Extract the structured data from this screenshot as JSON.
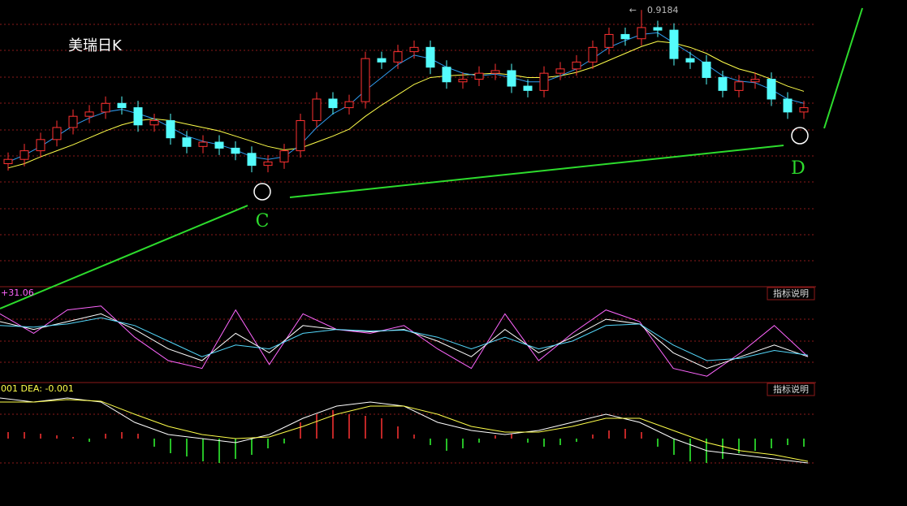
{
  "chart_data": [
    {
      "type": "candlestick",
      "title": "美瑞日K",
      "open": [
        0.74,
        0.745,
        0.755,
        0.768,
        0.782,
        0.795,
        0.8,
        0.81,
        0.805,
        0.785,
        0.79,
        0.77,
        0.76,
        0.765,
        0.758,
        0.752,
        0.738,
        0.742,
        0.755,
        0.79,
        0.815,
        0.805,
        0.812,
        0.862,
        0.858,
        0.87,
        0.875,
        0.852,
        0.835,
        0.838,
        0.845,
        0.848,
        0.83,
        0.825,
        0.845,
        0.85,
        0.858,
        0.875,
        0.89,
        0.885,
        0.898,
        0.895,
        0.862,
        0.858,
        0.84,
        0.825,
        0.835,
        0.838,
        0.815,
        0.8
      ],
      "high": [
        0.753,
        0.763,
        0.776,
        0.79,
        0.803,
        0.808,
        0.818,
        0.818,
        0.813,
        0.798,
        0.798,
        0.778,
        0.773,
        0.773,
        0.766,
        0.76,
        0.75,
        0.763,
        0.798,
        0.823,
        0.823,
        0.82,
        0.87,
        0.87,
        0.878,
        0.883,
        0.883,
        0.86,
        0.846,
        0.853,
        0.856,
        0.856,
        0.838,
        0.853,
        0.858,
        0.866,
        0.883,
        0.898,
        0.898,
        0.9184,
        0.906,
        0.903,
        0.87,
        0.866,
        0.848,
        0.843,
        0.846,
        0.846,
        0.823,
        0.813
      ],
      "low": [
        0.732,
        0.737,
        0.747,
        0.76,
        0.774,
        0.787,
        0.792,
        0.797,
        0.777,
        0.777,
        0.762,
        0.752,
        0.752,
        0.75,
        0.744,
        0.73,
        0.73,
        0.734,
        0.747,
        0.782,
        0.797,
        0.797,
        0.804,
        0.85,
        0.85,
        0.862,
        0.844,
        0.827,
        0.827,
        0.83,
        0.837,
        0.822,
        0.817,
        0.817,
        0.837,
        0.842,
        0.85,
        0.867,
        0.877,
        0.877,
        0.887,
        0.854,
        0.85,
        0.832,
        0.817,
        0.817,
        0.827,
        0.807,
        0.792,
        0.792
      ],
      "close": [
        0.745,
        0.755,
        0.768,
        0.782,
        0.795,
        0.8,
        0.81,
        0.805,
        0.785,
        0.79,
        0.77,
        0.76,
        0.765,
        0.758,
        0.752,
        0.738,
        0.742,
        0.755,
        0.79,
        0.815,
        0.805,
        0.812,
        0.862,
        0.858,
        0.87,
        0.875,
        0.852,
        0.835,
        0.838,
        0.845,
        0.848,
        0.83,
        0.825,
        0.845,
        0.85,
        0.858,
        0.875,
        0.89,
        0.885,
        0.898,
        0.895,
        0.862,
        0.858,
        0.84,
        0.825,
        0.835,
        0.838,
        0.815,
        0.8,
        0.805
      ],
      "up_color": "#ff3232",
      "down_color": "#54fcfc",
      "ylim": [
        0.6,
        0.93
      ],
      "ma": [
        {
          "color": "#ffff4a",
          "values": [
            0.735,
            0.74,
            0.748,
            0.755,
            0.762,
            0.77,
            0.778,
            0.785,
            0.79,
            0.792,
            0.79,
            0.786,
            0.782,
            0.778,
            0.772,
            0.766,
            0.76,
            0.756,
            0.758,
            0.765,
            0.772,
            0.78,
            0.795,
            0.808,
            0.82,
            0.832,
            0.84,
            0.842,
            0.843,
            0.844,
            0.845,
            0.843,
            0.84,
            0.84,
            0.842,
            0.846,
            0.852,
            0.86,
            0.868,
            0.876,
            0.882,
            0.88,
            0.875,
            0.868,
            0.858,
            0.85,
            0.845,
            0.838,
            0.83,
            0.824
          ]
        },
        {
          "color": "#2f9cf0",
          "values": [
            0.742,
            0.75,
            0.76,
            0.772,
            0.784,
            0.793,
            0.8,
            0.803,
            0.798,
            0.792,
            0.782,
            0.772,
            0.766,
            0.762,
            0.756,
            0.748,
            0.745,
            0.748,
            0.762,
            0.782,
            0.798,
            0.808,
            0.825,
            0.84,
            0.855,
            0.866,
            0.862,
            0.852,
            0.845,
            0.842,
            0.844,
            0.84,
            0.835,
            0.835,
            0.842,
            0.85,
            0.862,
            0.875,
            0.883,
            0.89,
            0.892,
            0.88,
            0.868,
            0.855,
            0.842,
            0.836,
            0.834,
            0.826,
            0.815,
            0.81
          ]
        }
      ],
      "annotations": [
        "C",
        "D"
      ]
    },
    {
      "type": "line",
      "label": "+31.06",
      "button": "指标说明",
      "ylim": [
        0,
        100
      ],
      "series": [
        {
          "color": "#ff66ff",
          "values": [
            85,
            60,
            90,
            95,
            55,
            25,
            15,
            90,
            20,
            85,
            65,
            60,
            70,
            40,
            15,
            85,
            25,
            60,
            90,
            75,
            15,
            5,
            35,
            70,
            30
          ]
        },
        {
          "color": "#ffffff",
          "values": [
            75,
            65,
            75,
            85,
            65,
            40,
            25,
            60,
            35,
            70,
            65,
            62,
            65,
            50,
            30,
            65,
            35,
            55,
            78,
            72,
            35,
            15,
            30,
            45,
            30
          ]
        },
        {
          "color": "#54d8fc",
          "values": [
            70,
            68,
            72,
            80,
            70,
            50,
            30,
            45,
            40,
            60,
            65,
            63,
            64,
            55,
            40,
            55,
            40,
            50,
            70,
            72,
            45,
            25,
            28,
            38,
            32
          ]
        }
      ]
    },
    {
      "type": "macd",
      "label": "001 DEA: -0.001",
      "button": "指标说明",
      "ylim": [
        -0.04,
        0.06
      ],
      "series": [
        {
          "color": "#ffffff",
          "values": [
            0.05,
            0.045,
            0.05,
            0.045,
            0.02,
            0.005,
            0,
            -0.005,
            0.005,
            0.025,
            0.04,
            0.045,
            0.04,
            0.02,
            0.01,
            0.005,
            0.01,
            0.02,
            0.03,
            0.02,
            0,
            -0.015,
            -0.02,
            -0.025,
            -0.03
          ]
        },
        {
          "color": "#ffff4a",
          "values": [
            0.045,
            0.045,
            0.048,
            0.046,
            0.03,
            0.015,
            0.005,
            0,
            0.002,
            0.015,
            0.03,
            0.04,
            0.04,
            0.03,
            0.015,
            0.008,
            0.008,
            0.015,
            0.025,
            0.025,
            0.01,
            -0.005,
            -0.015,
            -0.02,
            -0.028
          ]
        }
      ],
      "histogram": {
        "up_color": "#ff3232",
        "down_color": "#33ff33",
        "values": [
          0.008,
          0.008,
          0.006,
          0.004,
          0.002,
          -0.004,
          0.006,
          0.008,
          0.006,
          -0.01,
          -0.018,
          -0.022,
          -0.028,
          -0.03,
          -0.025,
          -0.02,
          -0.012,
          -0.006,
          0.02,
          0.03,
          0.035,
          0.03,
          0.028,
          0.025,
          0.015,
          0.005,
          -0.008,
          -0.015,
          -0.012,
          -0.005,
          0.004,
          0.006,
          -0.005,
          -0.01,
          -0.008,
          -0.004,
          0.005,
          0.01,
          0.012,
          0.008,
          -0.01,
          -0.02,
          -0.028,
          -0.03,
          -0.025,
          -0.018,
          -0.015,
          -0.012,
          -0.008,
          -0.01
        ]
      }
    }
  ]
}
